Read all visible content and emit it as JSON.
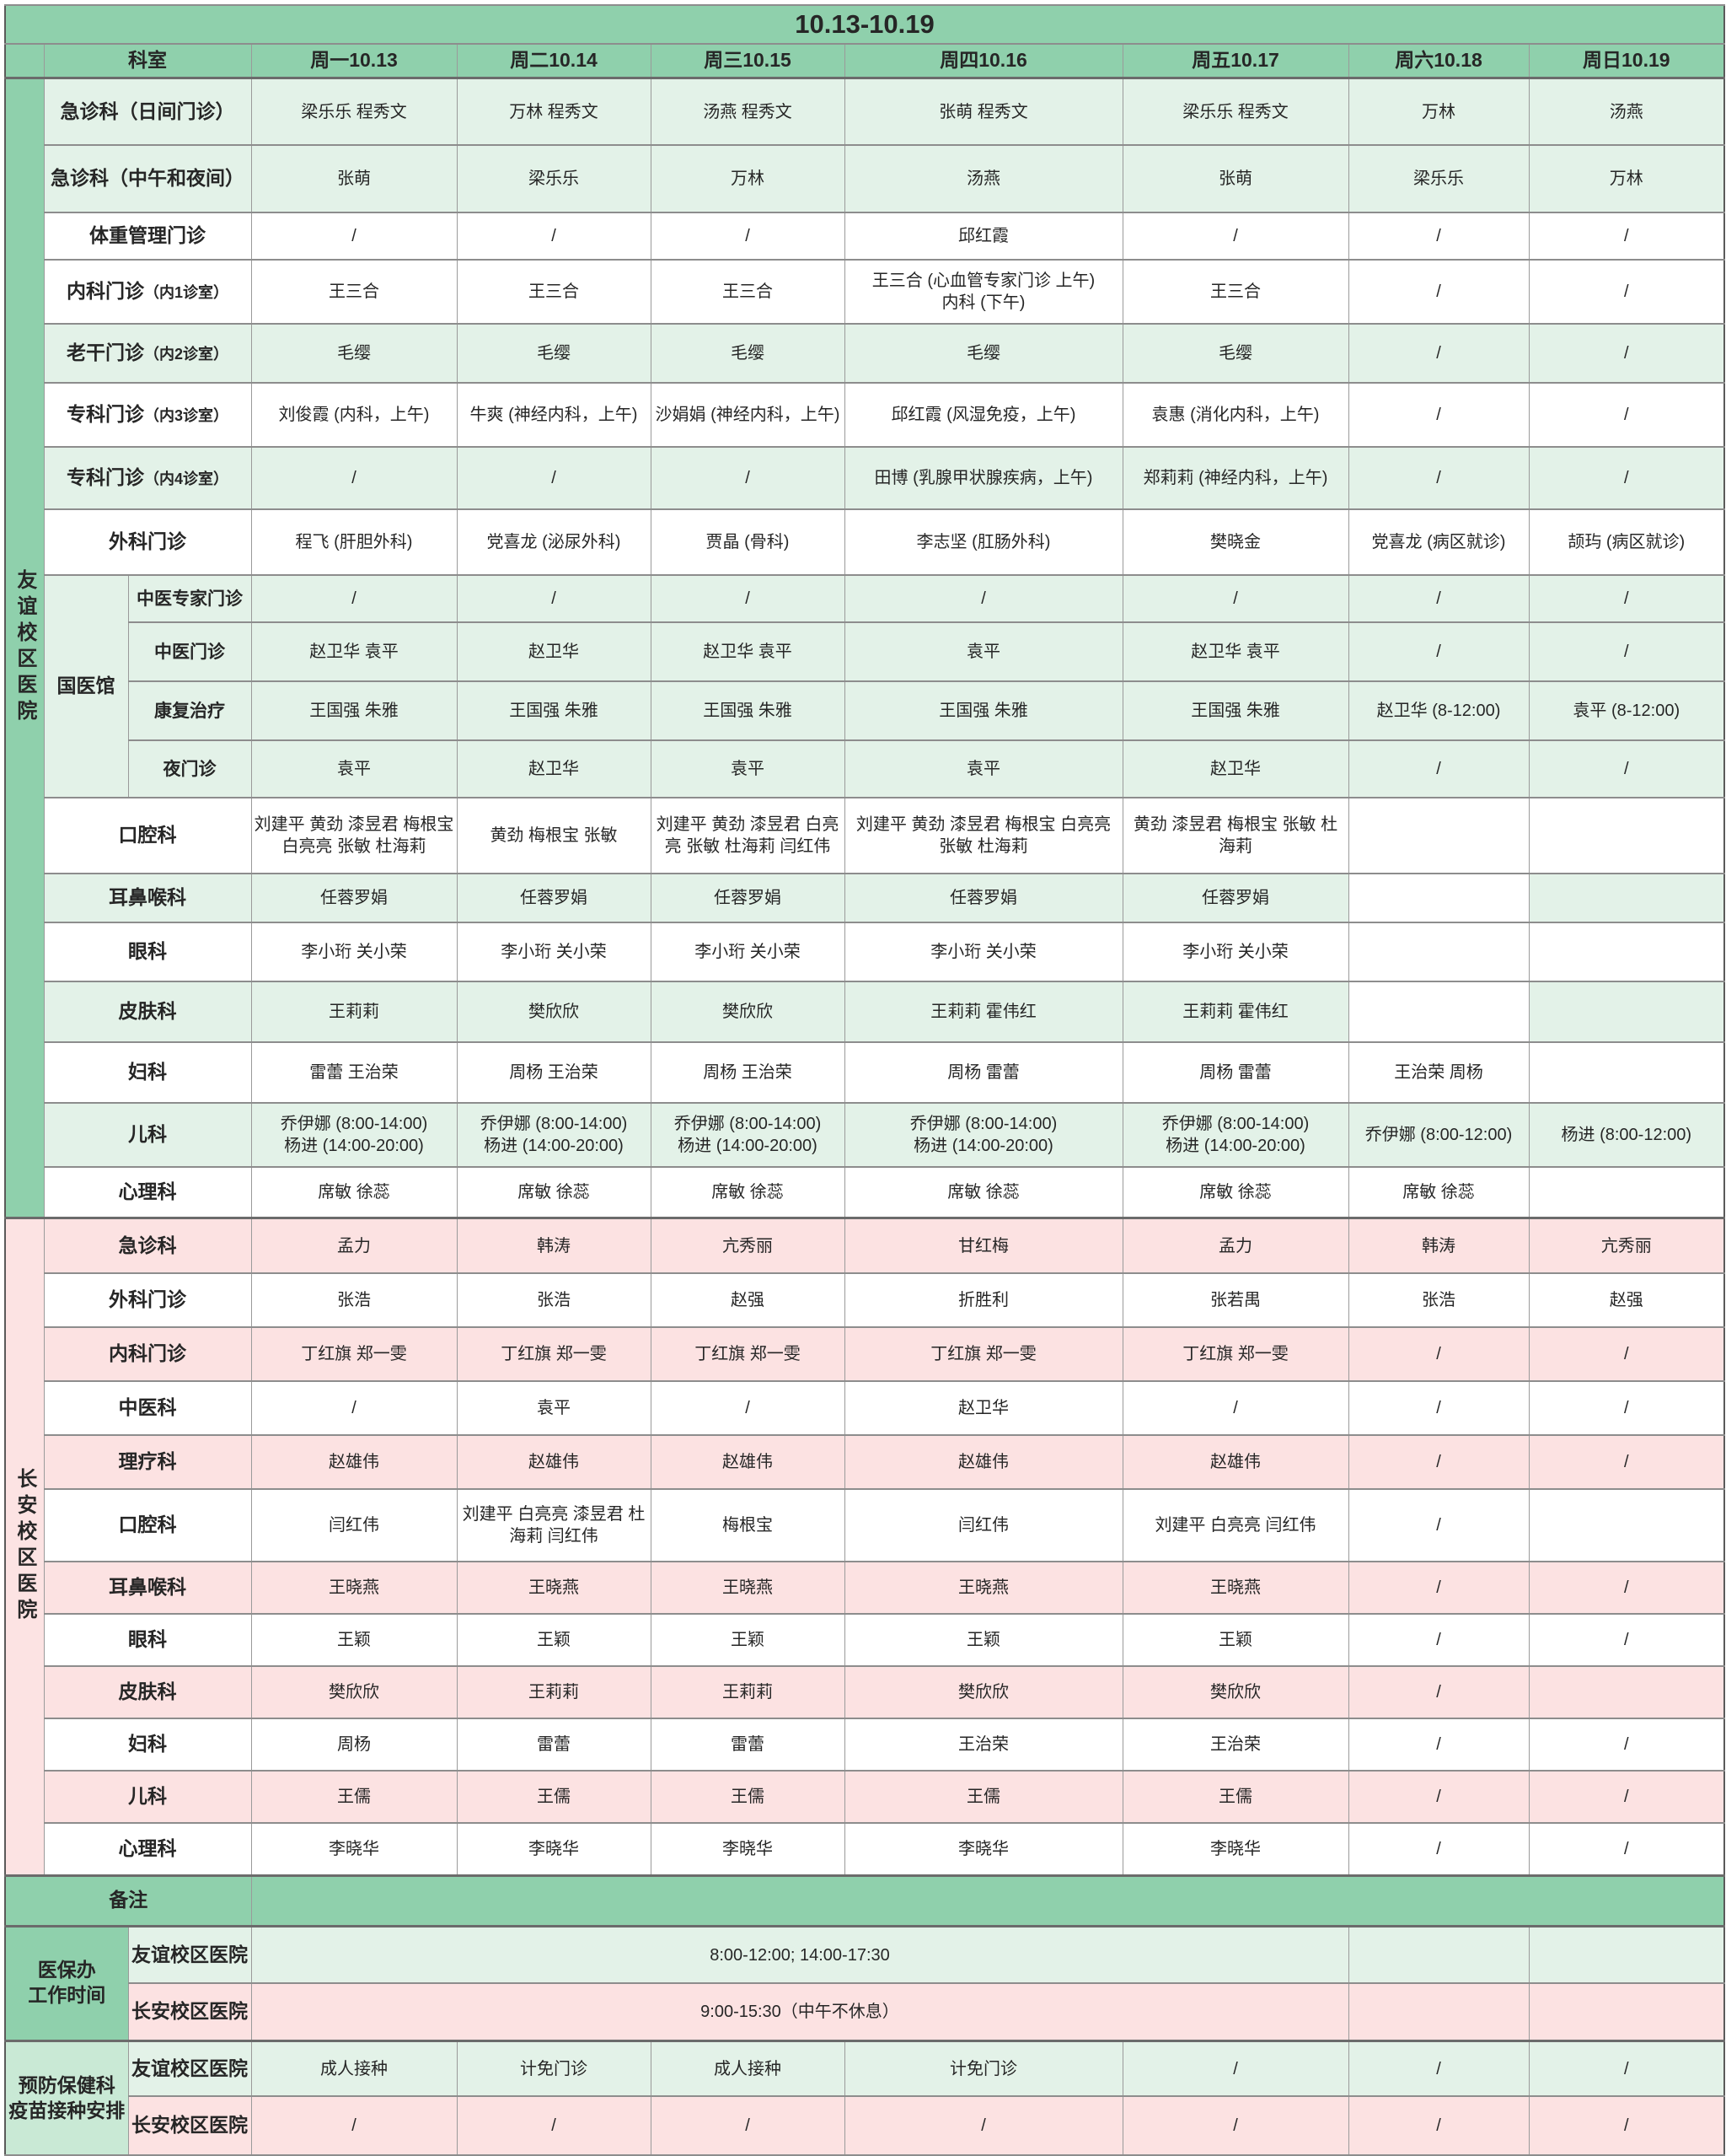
{
  "title": "10.13-10.19",
  "header": {
    "dept": "科室",
    "days": [
      "周一10.13",
      "周二10.14",
      "周三10.15",
      "周四10.16",
      "周五10.17",
      "周六10.18",
      "周日10.19"
    ]
  },
  "palette": {
    "header_green": "#8fd0ac",
    "light_green": "#e3f2e8",
    "pink": "#fce2e2",
    "footer_label_green": "#c9e9d5",
    "border_gray": "#8d8d8d"
  },
  "campuses": [
    {
      "name": "友谊校区医院",
      "rows": [
        {
          "label": "急诊科（日间门诊）",
          "bg": "green",
          "cells": [
            "梁乐乐 程秀文",
            "万林 程秀文",
            "汤燕 程秀文",
            "张萌  程秀文",
            "梁乐乐  程秀文",
            "万林",
            "汤燕"
          ]
        },
        {
          "label": "急诊科（中午和夜间）",
          "bg": "green",
          "cells": [
            "张萌",
            "梁乐乐",
            "万林",
            "汤燕",
            "张萌",
            "梁乐乐",
            "万林"
          ]
        },
        {
          "label": "体重管理门诊",
          "bg": "white",
          "cells": [
            "/",
            "/",
            "/",
            "邱红霞",
            "/",
            "/",
            "/"
          ]
        },
        {
          "label": "内科门诊",
          "sub": "（内1诊室）",
          "bg": "white",
          "cells": [
            "王三合",
            "王三合",
            "王三合",
            "王三合 (心血管专家门诊 上午)\n内科 (下午)",
            "王三合",
            "/",
            "/"
          ]
        },
        {
          "label": "老干门诊",
          "sub": "（内2诊室）",
          "bg": "green",
          "cells": [
            "毛缨",
            "毛缨",
            "毛缨",
            "毛缨",
            "毛缨",
            "/",
            "/"
          ]
        },
        {
          "label": "专科门诊",
          "sub": "（内3诊室）",
          "bg": "white",
          "cells": [
            "刘俊霞 (内科，上午)",
            "牛爽 (神经内科，上午)",
            "沙娟娟 (神经内科，上午)",
            "邱红霞 (风湿免疫，上午)",
            "袁惠 (消化内科，上午)",
            "/",
            "/"
          ]
        },
        {
          "label": "专科门诊",
          "sub": "（内4诊室）",
          "bg": "green",
          "cells": [
            "/",
            "/",
            "/",
            "田博 (乳腺甲状腺疾病，上午)",
            "郑莉莉 (神经内科，上午)",
            "/",
            "/"
          ]
        },
        {
          "label": "外科门诊",
          "bg": "white",
          "cells": [
            "程飞 (肝胆外科)",
            "党喜龙 (泌尿外科)",
            "贾晶 (骨科)",
            "李志坚 (肛肠外科)",
            "樊晓金",
            "党喜龙 (病区就诊)",
            "颉玙 (病区就诊)"
          ]
        },
        {
          "group_label": "国医馆",
          "group_span": 4,
          "grouped": true,
          "label": "中医专家门诊",
          "bg": "green",
          "cells": [
            "/",
            "/",
            "/",
            "/",
            "/",
            "/",
            "/"
          ]
        },
        {
          "grouped": true,
          "label": "中医门诊",
          "bg": "green",
          "cells": [
            "赵卫华 袁平",
            "赵卫华",
            "赵卫华 袁平",
            "袁平",
            "赵卫华 袁平",
            "/",
            "/"
          ]
        },
        {
          "grouped": true,
          "label": "康复治疗",
          "bg": "green",
          "cells": [
            "王国强 朱雅",
            "王国强 朱雅",
            "王国强 朱雅",
            "王国强 朱雅",
            "王国强 朱雅",
            "赵卫华 (8-12:00)",
            "袁平 (8-12:00)"
          ]
        },
        {
          "grouped": true,
          "label": "夜门诊",
          "bg": "green",
          "cells": [
            "袁平",
            "赵卫华",
            "袁平",
            "袁平",
            "赵卫华",
            "/",
            "/"
          ]
        },
        {
          "label": "口腔科",
          "bg": "white",
          "cells": [
            "刘建平 黄劲 漆昱君 梅根宝 白亮亮 张敏 杜海莉",
            "黄劲 梅根宝 张敏",
            "刘建平 黄劲 漆昱君 白亮亮 张敏 杜海莉 闫红伟",
            "刘建平 黄劲 漆昱君 梅根宝 白亮亮 张敏 杜海莉",
            "黄劲 漆昱君 梅根宝 张敏 杜海莉",
            "",
            ""
          ]
        },
        {
          "label": "耳鼻喉科",
          "bg": "green",
          "cells": [
            "任蓉罗娟",
            "任蓉罗娟",
            "任蓉罗娟",
            "任蓉罗娟",
            "任蓉罗娟",
            "",
            ""
          ],
          "overrides": {
            "5": "white"
          }
        },
        {
          "label": "眼科",
          "bg": "white",
          "cells": [
            "李小珩 关小荣",
            "李小珩 关小荣",
            "李小珩 关小荣",
            "李小珩 关小荣",
            "李小珩 关小荣",
            "",
            ""
          ]
        },
        {
          "label": "皮肤科",
          "bg": "green",
          "cells": [
            "王莉莉",
            "樊欣欣",
            "樊欣欣",
            "王莉莉 霍伟红",
            "王莉莉 霍伟红",
            "",
            ""
          ],
          "overrides": {
            "5": "white"
          }
        },
        {
          "label": "妇科",
          "bg": "white",
          "cells": [
            "雷蕾 王治荣",
            "周杨 王治荣",
            "周杨 王治荣",
            "周杨  雷蕾",
            "周杨 雷蕾",
            "王治荣 周杨",
            ""
          ]
        },
        {
          "label": "儿科",
          "bg": "green",
          "cells": [
            "乔伊娜 (8:00-14:00)\n杨进 (14:00-20:00)",
            "乔伊娜 (8:00-14:00)\n杨进 (14:00-20:00)",
            "乔伊娜 (8:00-14:00)\n杨进 (14:00-20:00)",
            "乔伊娜 (8:00-14:00)\n杨进 (14:00-20:00)",
            "乔伊娜 (8:00-14:00)\n杨进 (14:00-20:00)",
            "乔伊娜 (8:00-12:00)",
            "杨进 (8:00-12:00)"
          ]
        },
        {
          "label": "心理科",
          "bg": "white",
          "cells": [
            "席敏 徐蕊",
            "席敏 徐蕊",
            "席敏 徐蕊",
            "席敏 徐蕊",
            "席敏 徐蕊",
            "席敏 徐蕊",
            ""
          ]
        }
      ]
    },
    {
      "name": "长安校区医院",
      "rows": [
        {
          "label": "急诊科",
          "bg": "pink",
          "cells": [
            "孟力",
            "韩涛",
            "亢秀丽",
            "甘红梅",
            "孟力",
            "韩涛",
            "亢秀丽"
          ]
        },
        {
          "label": "外科门诊",
          "bg": "white",
          "cells": [
            "张浩",
            "张浩",
            "赵强",
            "折胜利",
            "张若禺",
            "张浩",
            "赵强"
          ]
        },
        {
          "label": "内科门诊",
          "bg": "pink",
          "cells": [
            "丁红旗 郑一雯",
            "丁红旗 郑一雯",
            "丁红旗 郑一雯",
            "丁红旗 郑一雯",
            "丁红旗 郑一雯",
            "/",
            "/"
          ]
        },
        {
          "label": "中医科",
          "bg": "white",
          "cells": [
            "/",
            "袁平",
            "/",
            "赵卫华",
            "/",
            "/",
            "/"
          ]
        },
        {
          "label": "理疗科",
          "bg": "pink",
          "cells": [
            "赵雄伟",
            "赵雄伟",
            "赵雄伟",
            "赵雄伟",
            "赵雄伟",
            "/",
            "/"
          ]
        },
        {
          "label": "口腔科",
          "bg": "white",
          "cells": [
            "闫红伟",
            "刘建平 白亮亮 漆昱君 杜海莉 闫红伟",
            "梅根宝",
            "闫红伟",
            "刘建平 白亮亮 闫红伟",
            "/",
            ""
          ]
        },
        {
          "label": "耳鼻喉科",
          "bg": "pink",
          "cells": [
            "王晓燕",
            "王晓燕",
            "王晓燕",
            "王晓燕",
            "王晓燕",
            "/",
            "/"
          ]
        },
        {
          "label": "眼科",
          "bg": "white",
          "cells": [
            "王颖",
            "王颖",
            "王颖",
            "王颖",
            "王颖",
            "/",
            "/"
          ]
        },
        {
          "label": "皮肤科",
          "bg": "pink",
          "cells": [
            "樊欣欣",
            "王莉莉",
            "王莉莉",
            "樊欣欣",
            "樊欣欣",
            "/",
            ""
          ]
        },
        {
          "label": "妇科",
          "bg": "white",
          "cells": [
            "周杨",
            "雷蕾",
            "雷蕾",
            "王治荣",
            "王治荣",
            "/",
            "/"
          ]
        },
        {
          "label": "儿科",
          "bg": "pink",
          "cells": [
            "王儒",
            "王儒",
            "王儒",
            "王儒",
            "王儒",
            "/",
            "/"
          ]
        },
        {
          "label": "心理科",
          "bg": "white",
          "cells": [
            "李晓华",
            "李晓华",
            "李晓华",
            "李晓华",
            "李晓华",
            "/",
            "/"
          ]
        }
      ]
    }
  ],
  "footer": {
    "remark_label": "备注",
    "sections": [
      {
        "label": "医保办\n工作时间",
        "style": "mid",
        "rows": [
          {
            "sublabel": "友谊校区医院",
            "bg": "green",
            "merged": "8:00-12:00;  14:00-17:30",
            "sat": "",
            "sun": ""
          },
          {
            "sublabel": "长安校区医院",
            "bg": "pink",
            "merged": "9:00-15:30（中午不休息）",
            "sat": "",
            "sun": ""
          }
        ]
      },
      {
        "label": "预防保健科\n疫苗接种安排",
        "style": "light",
        "rows": [
          {
            "sublabel": "友谊校区医院",
            "bg": "green",
            "cells": [
              "成人接种",
              "计免门诊",
              "成人接种",
              "计免门诊",
              "/",
              "/",
              "/"
            ]
          },
          {
            "sublabel": "长安校区医院",
            "bg": "pink",
            "cells": [
              "/",
              "/",
              "/",
              "/",
              "/",
              "/",
              "/"
            ]
          }
        ]
      }
    ]
  }
}
